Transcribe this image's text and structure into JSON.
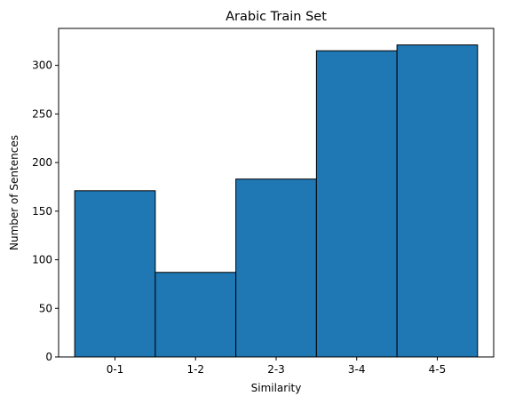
{
  "chart_data": {
    "type": "bar",
    "title": "Arabic Train Set",
    "xlabel": "Similarity",
    "ylabel": "Number of Sentences",
    "categories": [
      "0-1",
      "1-2",
      "2-3",
      "3-4",
      "4-5"
    ],
    "values": [
      171,
      87,
      183,
      315,
      321
    ],
    "ylim": [
      0,
      338
    ],
    "yticks": [
      0,
      50,
      100,
      150,
      200,
      250,
      300
    ],
    "ytick_labels": [
      "0",
      "50",
      "100",
      "150",
      "200",
      "250",
      "300"
    ],
    "grid": false,
    "legend": "none",
    "bar_color": "#1f77b4",
    "edge_color": "#000000"
  }
}
